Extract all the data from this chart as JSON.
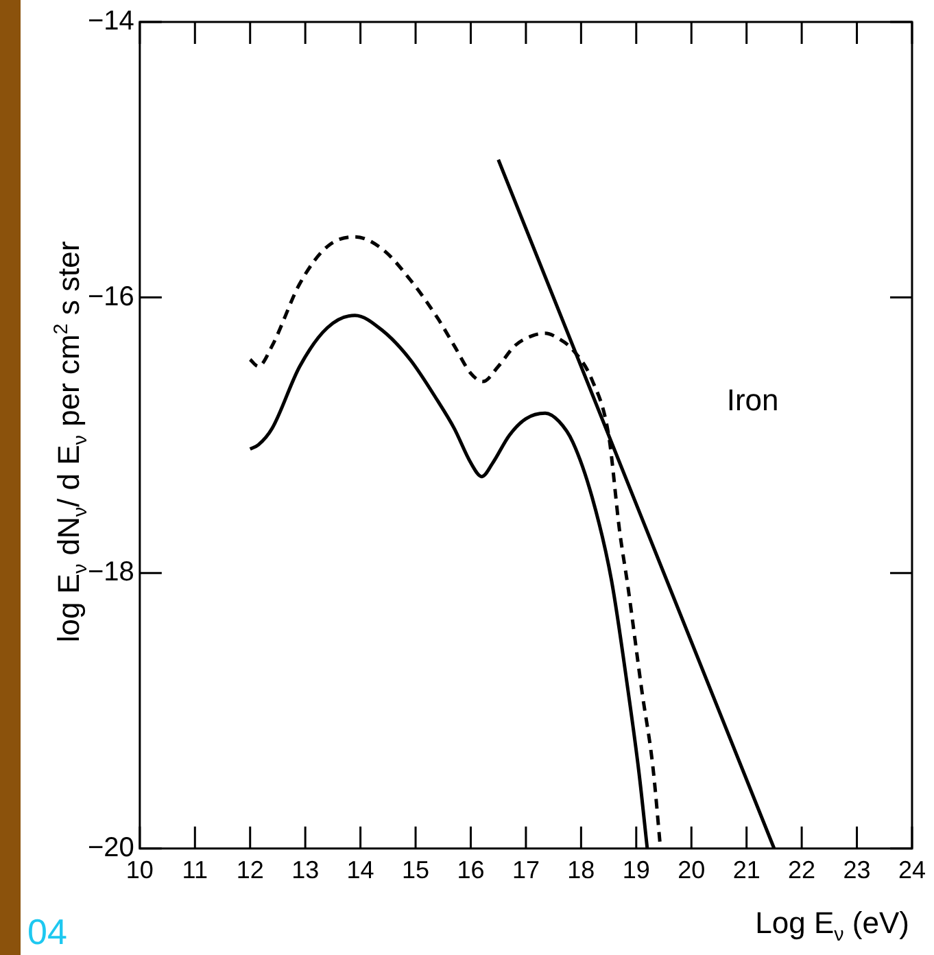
{
  "chart_data": {
    "type": "line",
    "xlabel": "Log E$_{ν}$ (eV)",
    "ylabel": "log E$_{ν}$ dN$_{ν}$/ d E$_{ν}$  per cm$^{2}$ s ster",
    "xlim": [
      10,
      24
    ],
    "xticks": [
      10,
      11,
      12,
      13,
      14,
      15,
      16,
      17,
      18,
      19,
      20,
      21,
      22,
      23,
      24
    ],
    "ylim": [
      -20,
      -14
    ],
    "yticks": [
      -20,
      -18,
      -16,
      -14
    ],
    "annotations": [
      "Iron",
      "04"
    ],
    "series": [
      {
        "color": "#000000",
        "line_style": "solid",
        "x": [
          12.0,
          12.15,
          12.4,
          12.9,
          13.4,
          13.9,
          14.4,
          14.9,
          15.4,
          15.7,
          16.0,
          16.2,
          16.4,
          16.7,
          17.0,
          17.35,
          17.6,
          17.85,
          18.2,
          18.55,
          18.85,
          19.05,
          19.2
        ],
        "values": [
          -17.1,
          -17.07,
          -16.95,
          -16.5,
          -16.22,
          -16.13,
          -16.24,
          -16.45,
          -16.75,
          -16.95,
          -17.2,
          -17.3,
          -17.2,
          -17.0,
          -16.88,
          -16.84,
          -16.9,
          -17.05,
          -17.45,
          -18.05,
          -18.85,
          -19.45,
          -20.0
        ]
      },
      {
        "color": "#000000",
        "line_style": "dashed",
        "x": [
          12.0,
          12.15,
          12.4,
          12.9,
          13.4,
          13.9,
          14.4,
          14.9,
          15.4,
          15.7,
          16.0,
          16.22,
          16.5,
          16.8,
          17.1,
          17.35,
          17.6,
          17.85,
          18.2,
          18.5,
          18.7,
          18.85,
          19.1,
          19.3,
          19.44
        ],
        "values": [
          -16.45,
          -16.5,
          -16.35,
          -15.9,
          -15.63,
          -15.56,
          -15.65,
          -15.87,
          -16.15,
          -16.35,
          -16.55,
          -16.61,
          -16.5,
          -16.35,
          -16.28,
          -16.26,
          -16.3,
          -16.38,
          -16.6,
          -17.0,
          -17.7,
          -18.1,
          -18.85,
          -19.4,
          -20.0
        ]
      },
      {
        "color": "#000000",
        "line_style": "solid",
        "x": [
          16.5,
          21.5
        ],
        "values": [
          -15.0,
          -20.0
        ]
      }
    ]
  }
}
